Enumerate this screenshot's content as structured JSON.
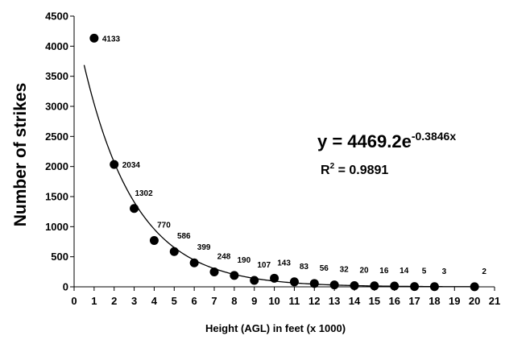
{
  "chart_data": {
    "type": "scatter",
    "title": "",
    "xlabel": "Height (AGL) in feet (x 1000)",
    "ylabel": "Number of strikes",
    "xlim": [
      0,
      21
    ],
    "ylim": [
      0,
      4500
    ],
    "x_ticks": [
      0,
      1,
      2,
      3,
      4,
      5,
      6,
      7,
      8,
      9,
      10,
      11,
      12,
      13,
      14,
      15,
      16,
      17,
      18,
      19,
      20,
      21
    ],
    "y_ticks": [
      0,
      500,
      1000,
      1500,
      2000,
      2500,
      3000,
      3500,
      4000,
      4500
    ],
    "grid": false,
    "legend": "none",
    "series": [
      {
        "x": [
          1,
          2,
          3,
          4,
          5,
          6,
          7,
          8,
          9,
          10,
          11,
          12,
          13,
          14,
          15,
          16,
          17,
          18,
          20
        ],
        "y": [
          4133,
          2034,
          1302,
          770,
          586,
          399,
          248,
          190,
          107,
          143,
          83,
          56,
          32,
          20,
          16,
          14,
          5,
          3,
          2
        ],
        "labels": [
          "4133",
          "2034",
          "1302",
          "770",
          "586",
          "399",
          "248",
          "190",
          "107",
          "143",
          "83",
          "56",
          "32",
          "20",
          "16",
          "14",
          "5",
          "3",
          "2"
        ]
      }
    ],
    "trendline": {
      "type": "exponential",
      "a": 4469.2,
      "b": -0.3846,
      "x_range": [
        0.5,
        20
      ],
      "equation_prefix": "y = 4469.2e",
      "equation_exponent": "-0.3846x",
      "r2_prefix": "R",
      "r2_sup": "2",
      "r2_suffix": " = 0.9891"
    },
    "colors": {
      "marker": "#000000",
      "line": "#000000",
      "axis": "#000000"
    }
  }
}
